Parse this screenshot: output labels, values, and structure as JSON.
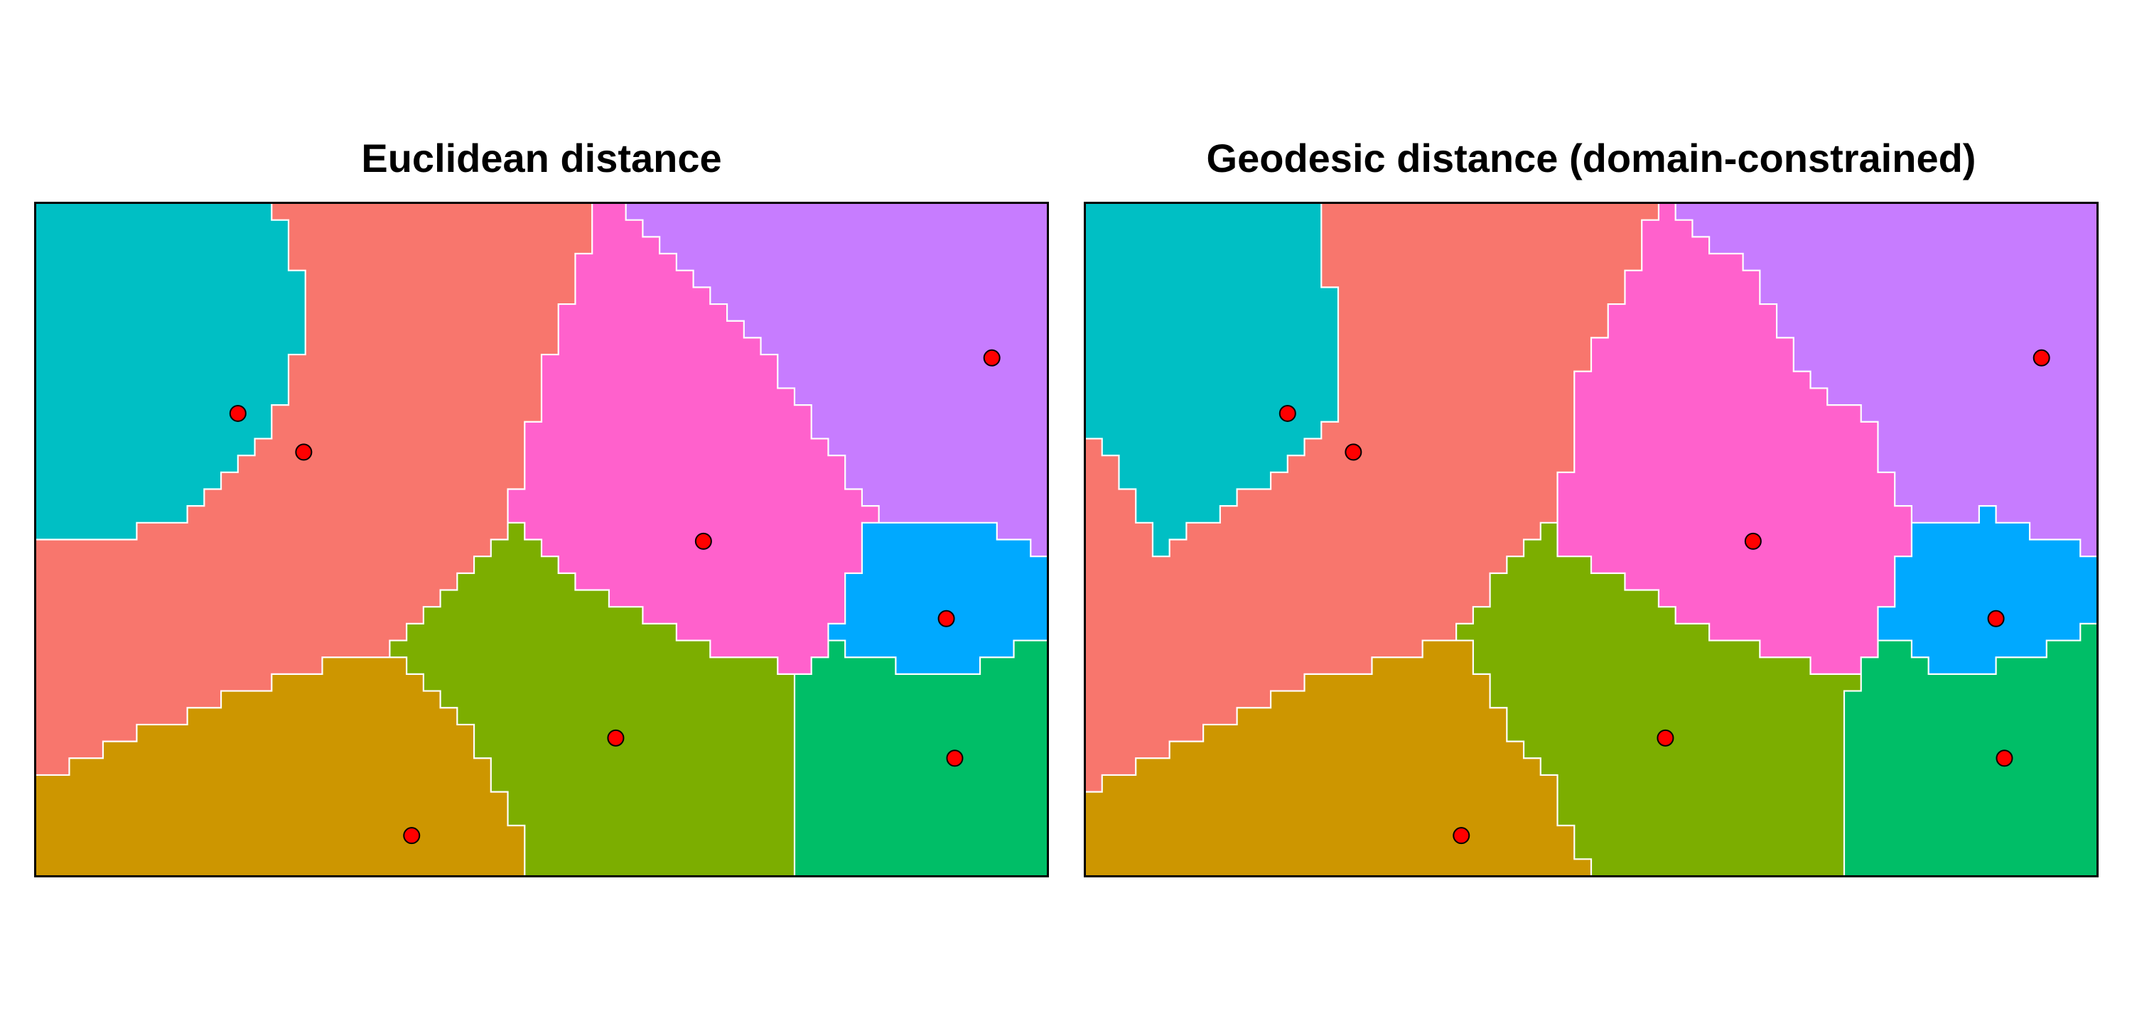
{
  "colors": {
    "T": "#00BFC4",
    "S": "#F8766D",
    "M": "#FF61CC",
    "P": "#C77CFF",
    "B": "#00A9FF",
    "G": "#00BE67",
    "O": "#7CAE00",
    "Y": "#CD9600",
    "boundary": "#FFFFFF",
    "point_fill": "#FF0000",
    "point_stroke": "#000000"
  },
  "chart_data": [
    {
      "type": "heatmap",
      "title": "Euclidean distance",
      "grid": {
        "cols": 60,
        "rows": 40
      },
      "region_rows": [
        "T14,S19,M2,P25",
        "T15,S18,M3,P24",
        "T15,S18,M4,P23",
        "T15,S17,M6,P22",
        "T16,S16,M7,P21",
        "T16,S16,M8,P20",
        "T16,S15,M10,P19",
        "T16,S15,M11,P18",
        "T16,S15,M12,P17",
        "T15,S15,M14,P16",
        "T15,S15,M14,P16",
        "T15,S15,M15,P15",
        "T14,S16,M16,P14",
        "T14,S15,M17,P14",
        "T13,S16,M18,P13",
        "T12,S17,M19,P12",
        "T11,S18,M19,P12",
        "T10,S18,M21,P11",
        "T9,S19,M22,P10",
        "T6,S22,O1,M20,B8,P3",
        "S27,O3,M19,B10,P1",
        "S26,O5,M18,B11",
        "S25,O7,M16,B12",
        "S24,O10,M14,B12",
        "S23,O13,M12,B12",
        "S22,O16,M9,B13",
        "S21,O19,M7,G1,B10,G2",
        "S17,Y5,O22,M2,G5,B5,G4",
        "S14,Y9,O22,G15",
        "S11,Y13,O21,G15",
        "S9,Y16,O20,G15",
        "S6,Y20,O19,G15",
        "S4,Y22,O19,G15",
        "S2,Y25,O18,G15",
        "Y27,O18,G15",
        "Y28,O17,G15",
        "Y28,O17,G15",
        "Y29,O16,G15",
        "Y29,O16,G15",
        "Y29,O16,G15"
      ],
      "points": [
        {
          "x": 12.0,
          "y": 27.5
        },
        {
          "x": 15.9,
          "y": 25.2
        },
        {
          "x": 39.6,
          "y": 19.9
        },
        {
          "x": 56.7,
          "y": 30.8
        },
        {
          "x": 54.0,
          "y": 15.3
        },
        {
          "x": 54.5,
          "y": 7.0
        },
        {
          "x": 34.4,
          "y": 8.2
        },
        {
          "x": 22.3,
          "y": 2.4
        }
      ]
    },
    {
      "type": "heatmap",
      "title": "Geodesic distance (domain-constrained)",
      "grid": {
        "cols": 60,
        "rows": 40
      },
      "region_rows": [
        "T14,S20,M1,P25",
        "T14,S19,M3,P24",
        "T14,S19,M4,P23",
        "T14,S19,M6,P21",
        "T14,S18,M8,P20",
        "T15,S17,M8,P20",
        "T15,S16,M10,P19",
        "T15,S16,M10,P19",
        "T15,S15,M12,P18",
        "T15,S15,M12,P18",
        "T15,S14,M14,P17",
        "T15,S14,M15,P16",
        "T15,S14,M17,P14",
        "T14,S15,M18,P13",
        "S1,T12,S16,M18,P13",
        "S2,T10,S17,M18,P13",
        "S2,T9,S17,M20,P12",
        "S3,T6,S19,M20,P12",
        "S3,T5,S20,M21,P4,B1,P6",
        "S4,T2,S21,O1,M21,B7,P4",
        "S4,T1,S21,O2,M21,B10,P1",
        "S25,O5,M18,B12",
        "S24,O8,M16,B12",
        "S24,O10,M14,B12",
        "S23,O12,M12,B13",
        "S22,O15,M10,B12,G1",
        "S20,Y3,O17,M7,G2,B8,G3",
        "S17,Y6,O20,M3,G4,B4,G6",
        "S13,Y11,O22,G14",
        "S11,Y13,O21,G15",
        "S9,Y16,O20,G15",
        "S7,Y18,O20,G15",
        "S5,Y21,O19,G15",
        "S3,Y24,O18,G15",
        "S1,Y27,O17,G15",
        "Y28,O17,G15",
        "Y28,O17,G15",
        "Y29,O16,G15",
        "Y29,O16,G15",
        "Y30,O15,G15"
      ],
      "points": [
        {
          "x": 12.0,
          "y": 27.5
        },
        {
          "x": 15.9,
          "y": 25.2
        },
        {
          "x": 39.6,
          "y": 19.9
        },
        {
          "x": 56.7,
          "y": 30.8
        },
        {
          "x": 54.0,
          "y": 15.3
        },
        {
          "x": 54.5,
          "y": 7.0
        },
        {
          "x": 34.4,
          "y": 8.2
        },
        {
          "x": 22.3,
          "y": 2.4
        }
      ]
    }
  ]
}
